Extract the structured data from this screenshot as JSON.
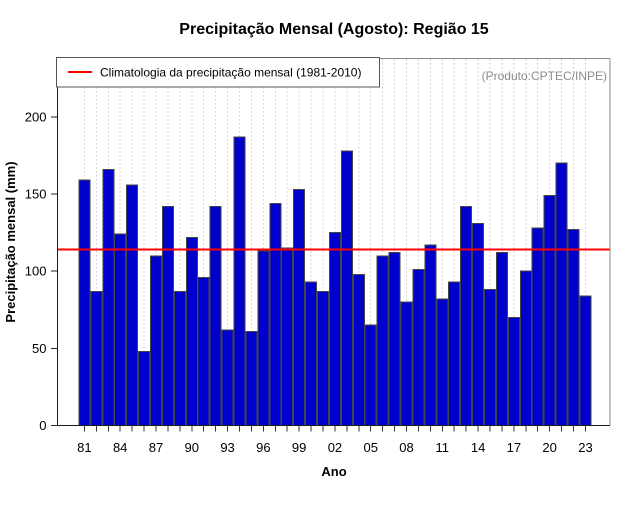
{
  "header": {
    "title": "Precipitação Mensal (Agosto): Região 15"
  },
  "legend": {
    "label": "Climatologia da precipitação mensal (1981-2010)"
  },
  "annotation": {
    "text": "(Produto:CPTEC/INPE)"
  },
  "chart_data": {
    "type": "bar",
    "title": "Precipitação Mensal (Agosto): Região 15",
    "xlabel": "Ano",
    "ylabel": "Precipitação mensal (mm)",
    "categories": [
      1981,
      1982,
      1983,
      1984,
      1985,
      1986,
      1987,
      1988,
      1989,
      1990,
      1991,
      1992,
      1993,
      1994,
      1995,
      1996,
      1997,
      1998,
      1999,
      2000,
      2001,
      2002,
      2003,
      2004,
      2005,
      2006,
      2007,
      2008,
      2009,
      2010,
      2011,
      2012,
      2013,
      2014,
      2015,
      2016,
      2017,
      2018,
      2019,
      2020,
      2021,
      2022,
      2023
    ],
    "values": [
      159,
      87,
      166,
      124,
      156,
      48,
      110,
      142,
      87,
      122,
      96,
      142,
      62,
      187,
      61,
      113,
      144,
      115,
      153,
      93,
      87,
      125,
      178,
      98,
      65,
      110,
      112,
      80,
      101,
      117,
      82,
      93,
      142,
      131,
      88,
      112,
      70,
      100,
      128,
      149,
      170,
      127,
      84
    ],
    "climatology": {
      "label": "Climatologia da precipitação mensal (1981-2010)",
      "value": 114,
      "color": "#ff0000"
    },
    "x_tick_labels": [
      "81",
      "84",
      "87",
      "90",
      "93",
      "96",
      "99",
      "02",
      "05",
      "08",
      "11",
      "14",
      "17",
      "20",
      "23"
    ],
    "x_tick_step": 3,
    "y_ticks": [
      0,
      50,
      100,
      150,
      200
    ],
    "ylim": [
      0,
      238
    ],
    "grid": {
      "vertical_dotted_per_year": true
    },
    "legend_position": "top-left-inside",
    "annotation_position": "top-right-inside",
    "colors": {
      "bar": "#0000cd",
      "bar_border": "#444444",
      "grid": "#c9c9c9",
      "frame_light": "#8a8a8a",
      "frame_dark": "#1a1a1a",
      "annotation": "#8c8c8c",
      "climatology": "#ff0000"
    }
  }
}
